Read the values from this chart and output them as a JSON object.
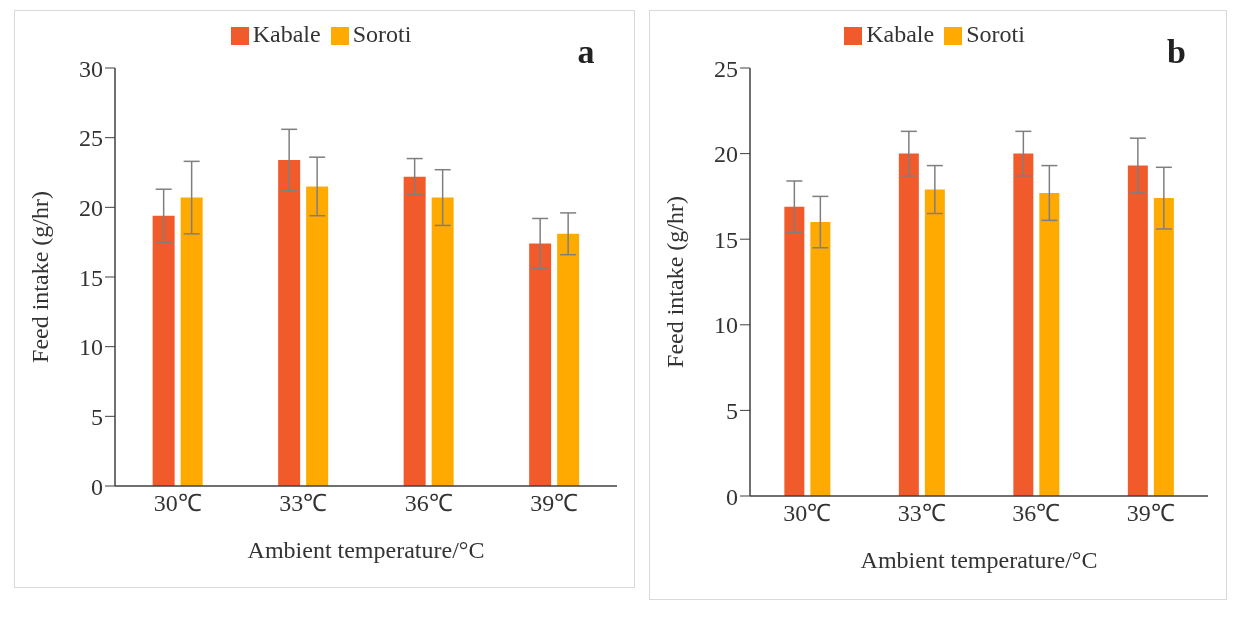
{
  "chart_data": [
    {
      "type": "bar",
      "title": null,
      "xlabel": "Ambient temperature/°C",
      "ylabel": "Feed intake (g/hr)",
      "categories": [
        "30℃",
        "33℃",
        "36℃",
        "39℃"
      ],
      "series": [
        {
          "name": "Kabale",
          "color": "#f15a2b",
          "values": [
            19.4,
            23.4,
            22.2,
            17.4
          ],
          "errors": [
            1.9,
            2.2,
            1.3,
            1.8
          ]
        },
        {
          "name": "Soroti",
          "color": "#ffaa00",
          "values": [
            20.7,
            21.5,
            20.7,
            18.1
          ],
          "errors": [
            2.6,
            2.1,
            2.0,
            1.5
          ]
        }
      ],
      "ylim": [
        0,
        30
      ],
      "yticks": [
        0,
        5,
        10,
        15,
        20,
        25,
        30
      ],
      "grid": false,
      "legend": "top",
      "annotations": [
        "a"
      ]
    },
    {
      "type": "bar",
      "xlabel": "Ambient temperature/°C",
      "ylabel": "Feed intake (g/hr)",
      "categories": [
        "30℃",
        "33℃",
        "36℃",
        "39℃"
      ],
      "series": [
        {
          "name": "Kabale",
          "color": "#f15a2b",
          "values": [
            16.9,
            20.0,
            20.0,
            19.3
          ],
          "errors": [
            1.5,
            1.3,
            1.3,
            1.6
          ]
        },
        {
          "name": "Soroti",
          "color": "#ffaa00",
          "values": [
            16.0,
            17.9,
            17.7,
            17.4
          ],
          "errors": [
            1.5,
            1.4,
            1.6,
            1.8
          ]
        }
      ],
      "ylim": [
        0,
        25
      ],
      "yticks": [
        0,
        5,
        10,
        15,
        20,
        25
      ],
      "grid": false,
      "legend": "top",
      "annotations": [
        "b"
      ]
    }
  ]
}
